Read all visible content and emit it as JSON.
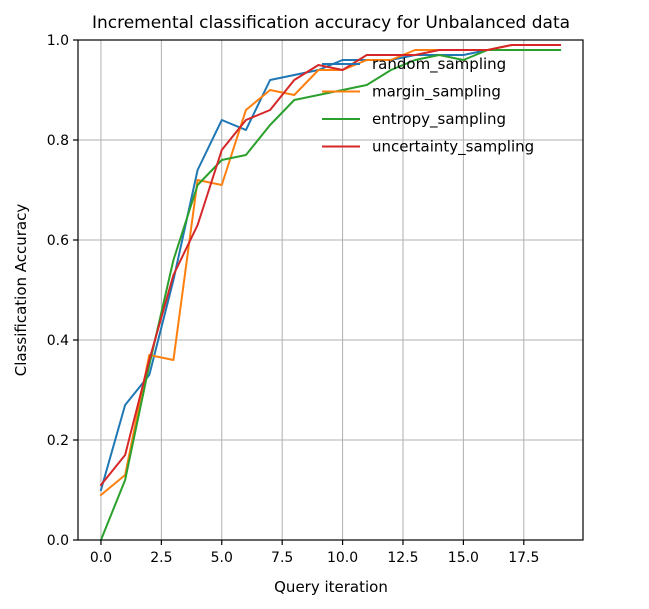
{
  "chart_data": {
    "type": "line",
    "title": "Incremental classification accuracy for Unbalanced data",
    "xlabel": "Query iteration",
    "ylabel": "Classification Accuracy",
    "xlim": [
      -0.95,
      19.95
    ],
    "ylim": [
      0.0,
      1.0
    ],
    "xticks": [
      0.0,
      2.5,
      5.0,
      7.5,
      10.0,
      12.5,
      15.0,
      17.5
    ],
    "xtick_labels": [
      "0.0",
      "2.5",
      "5.0",
      "7.5",
      "10.0",
      "12.5",
      "15.0",
      "17.5"
    ],
    "yticks": [
      0.0,
      0.2,
      0.4,
      0.6,
      0.8,
      1.0
    ],
    "ytick_labels": [
      "0.0",
      "0.2",
      "0.4",
      "0.6",
      "0.8",
      "1.0"
    ],
    "grid": true,
    "legend_position": "top-right",
    "x": [
      0,
      1,
      2,
      3,
      4,
      5,
      6,
      7,
      8,
      9,
      10,
      11,
      12,
      13,
      14,
      15,
      16,
      17,
      18,
      19
    ],
    "series": [
      {
        "name": "random_sampling",
        "color": "#1f77b4",
        "values": [
          0.1,
          0.27,
          0.33,
          0.52,
          0.74,
          0.84,
          0.82,
          0.92,
          0.93,
          0.94,
          0.96,
          0.96,
          0.96,
          0.97,
          0.97,
          0.97,
          0.98,
          0.98,
          0.98,
          0.98
        ]
      },
      {
        "name": "margin_sampling",
        "color": "#ff7f0e",
        "values": [
          0.09,
          0.13,
          0.37,
          0.36,
          0.72,
          0.71,
          0.86,
          0.9,
          0.89,
          0.94,
          0.94,
          0.96,
          0.96,
          0.98,
          0.98,
          0.98,
          0.98,
          0.99,
          0.99,
          0.99
        ]
      },
      {
        "name": "entropy_sampling",
        "color": "#2ca02c",
        "values": [
          0.0,
          0.12,
          0.35,
          0.56,
          0.71,
          0.76,
          0.77,
          0.83,
          0.88,
          0.89,
          0.9,
          0.91,
          0.94,
          0.96,
          0.97,
          0.96,
          0.98,
          0.98,
          0.98,
          0.98
        ]
      },
      {
        "name": "uncertainty_sampling",
        "color": "#d62728",
        "values": [
          0.11,
          0.17,
          0.36,
          0.53,
          0.63,
          0.78,
          0.84,
          0.86,
          0.92,
          0.95,
          0.94,
          0.97,
          0.97,
          0.97,
          0.98,
          0.98,
          0.98,
          0.99,
          0.99,
          0.99
        ]
      }
    ]
  }
}
